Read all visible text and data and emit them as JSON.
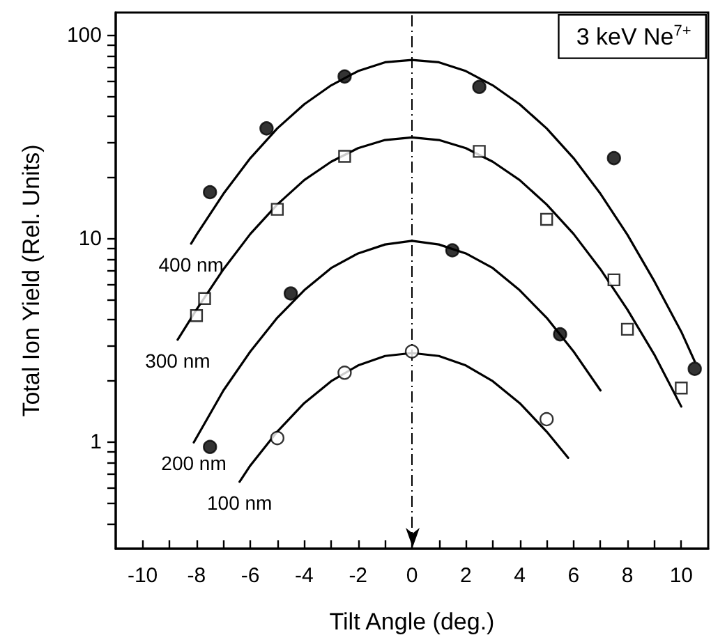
{
  "chart_data": {
    "type": "scatter",
    "xlabel": "Tilt Angle (deg.)",
    "ylabel": "Total Ion Yield (Rel. Units)",
    "annotations": [
      "3 keV Ne$^{7+}$"
    ],
    "xlim": [
      -11,
      11
    ],
    "xticks": [
      -10,
      {
        "value": -9,
        "label": null
      },
      -8,
      {
        "value": -7,
        "label": null
      },
      -6,
      {
        "value": -5,
        "label": null
      },
      -4,
      {
        "value": -3,
        "label": null
      },
      -2,
      {
        "value": -1,
        "label": null
      },
      0,
      {
        "value": 1,
        "label": null
      },
      2,
      {
        "value": 3,
        "label": null
      },
      4,
      {
        "value": 5,
        "label": null
      },
      6,
      {
        "value": 7,
        "label": null
      },
      8,
      {
        "value": 9,
        "label": null
      },
      10
    ],
    "ylim": [
      0.3,
      130
    ],
    "log": true,
    "yticks": [
      {
        "value": 0.4,
        "label": null
      },
      {
        "value": 0.5,
        "label": null
      },
      {
        "value": 0.6,
        "label": null
      },
      {
        "value": 0.7,
        "label": null
      },
      {
        "value": 0.8,
        "label": null
      },
      {
        "value": 0.9,
        "label": null
      },
      1,
      {
        "value": 2,
        "label": null
      },
      {
        "value": 3,
        "label": null
      },
      {
        "value": 4,
        "label": null
      },
      {
        "value": 5,
        "label": null
      },
      {
        "value": 6,
        "label": null
      },
      {
        "value": 7,
        "label": null
      },
      {
        "value": 8,
        "label": null
      },
      {
        "value": 9,
        "label": null
      },
      10,
      {
        "value": 20,
        "label": null
      },
      {
        "value": 30,
        "label": null
      },
      {
        "value": 40,
        "label": null
      },
      {
        "value": 50,
        "label": null
      },
      {
        "value": 60,
        "label": null
      },
      {
        "value": 70,
        "label": null
      },
      {
        "value": 80,
        "label": null
      },
      {
        "value": 90,
        "label": null
      },
      100
    ],
    "grid": false,
    "legend": false,
    "ref_lines": [
      {
        "axis": "x",
        "value": 0,
        "line_style": "dashed",
        "color": "#000000"
      }
    ],
    "series": [
      {
        "marker": "circle",
        "color": "#000000",
        "x": [
          -7.5,
          -5.4,
          -2.5,
          2.5,
          7.5,
          10.5
        ],
        "values": [
          17,
          35,
          63,
          56,
          25,
          2.3
        ]
      },
      {
        "marker": "square",
        "color": "#ffffff",
        "x": [
          -8,
          -7.7,
          -5,
          -2.5,
          2.5,
          5,
          7.5,
          8,
          10
        ],
        "values": [
          4.2,
          5.1,
          14,
          25.5,
          27,
          12.5,
          6.3,
          3.6,
          1.85
        ]
      },
      {
        "marker": "circle",
        "color": "#000000",
        "x": [
          -7.5,
          -4.5,
          1.5,
          5.5
        ],
        "values": [
          0.95,
          5.4,
          8.8,
          3.4
        ]
      },
      {
        "marker": "circle",
        "color": "#ffffff",
        "x": [
          -5,
          -2.5,
          0,
          5
        ],
        "values": [
          1.05,
          2.2,
          2.8,
          1.3
        ]
      },
      {
        "type": "line",
        "name": "400 nm",
        "marker": "none",
        "line_style": "solid",
        "color": "#000000",
        "x": [
          -8.2,
          -8,
          -7,
          -6,
          -5,
          -4,
          -3,
          -2,
          -1,
          0,
          1,
          2,
          3,
          4,
          5,
          6,
          7,
          8,
          9,
          10,
          10.5
        ],
        "values": [
          9.5,
          10.5,
          16.7,
          25,
          35,
          46,
          57,
          67,
          74,
          76,
          74,
          67,
          57,
          46,
          35,
          25,
          16.7,
          10.5,
          6.2,
          3.5,
          2.5
        ]
      },
      {
        "type": "line",
        "name": "300 nm",
        "marker": "none",
        "line_style": "solid",
        "color": "#000000",
        "x": [
          -8.7,
          -8,
          -7,
          -6,
          -5,
          -4,
          -3,
          -2,
          -1,
          0,
          1,
          2,
          3,
          4,
          5,
          6,
          7,
          8,
          9,
          10
        ],
        "values": [
          3.2,
          4.5,
          7.1,
          10.6,
          14.8,
          19.5,
          24,
          28,
          30.7,
          31.6,
          30.7,
          28,
          24,
          19.5,
          14.8,
          10.6,
          7.1,
          4.5,
          2.7,
          1.5
        ]
      },
      {
        "type": "line",
        "name": "200 nm",
        "marker": "none",
        "line_style": "solid",
        "color": "#000000",
        "x": [
          -8.1,
          -7,
          -6,
          -5,
          -4,
          -3,
          -2,
          -1,
          0,
          1,
          2,
          3,
          4,
          5,
          6,
          7
        ],
        "values": [
          1.0,
          1.8,
          2.8,
          4.1,
          5.6,
          7.2,
          8.5,
          9.4,
          9.8,
          9.4,
          8.5,
          7.2,
          5.6,
          4.1,
          2.8,
          1.8
        ]
      },
      {
        "type": "line",
        "name": "100 nm",
        "marker": "none",
        "line_style": "solid",
        "color": "#000000",
        "x": [
          -6.4,
          -6,
          -5,
          -4,
          -3,
          -2,
          -1,
          0,
          1,
          2,
          3,
          4,
          5,
          5.8
        ],
        "values": [
          0.64,
          0.77,
          1.13,
          1.56,
          2.0,
          2.39,
          2.66,
          2.75,
          2.66,
          2.39,
          2.0,
          1.56,
          1.13,
          0.84
        ]
      }
    ]
  }
}
